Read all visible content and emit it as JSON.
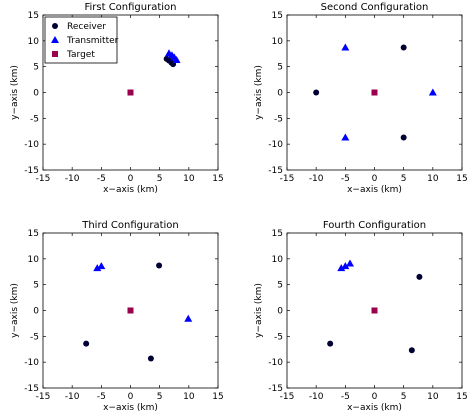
{
  "colors": {
    "receiver": "#000033",
    "transmitter": "#0000ff",
    "target": "#99004d"
  },
  "legend": {
    "placement": "top-left",
    "entries": [
      {
        "label": "Receiver",
        "marker": "circle"
      },
      {
        "label": "Transmitter",
        "marker": "triangle"
      },
      {
        "label": "Target",
        "marker": "square"
      }
    ]
  },
  "chart_data": [
    {
      "type": "scatter",
      "title": "First Configuration",
      "xlabel": "x−axis (km)",
      "ylabel": "y−axis (km)",
      "xlim": [
        -15,
        15
      ],
      "ylim": [
        -15,
        15
      ],
      "xticks": [
        -15,
        -10,
        -5,
        0,
        5,
        10,
        15
      ],
      "yticks": [
        -15,
        -10,
        -5,
        0,
        5,
        10,
        15
      ],
      "series": [
        {
          "name": "Receiver",
          "marker": "circle",
          "points": [
            [
              6.2,
              6.5
            ],
            [
              6.6,
              6.2
            ],
            [
              7.0,
              5.8
            ],
            [
              7.3,
              5.5
            ]
          ]
        },
        {
          "name": "Transmitter",
          "marker": "triangle",
          "points": [
            [
              6.6,
              7.6
            ],
            [
              7.1,
              7.2
            ],
            [
              7.5,
              6.8
            ],
            [
              7.9,
              6.3
            ]
          ]
        },
        {
          "name": "Target",
          "marker": "square",
          "points": [
            [
              0,
              0
            ]
          ]
        }
      ]
    },
    {
      "type": "scatter",
      "title": "Second Configuration",
      "xlabel": "x−axis (km)",
      "ylabel": "y−axis (km)",
      "xlim": [
        -15,
        15
      ],
      "ylim": [
        -15,
        15
      ],
      "xticks": [
        -15,
        -10,
        -5,
        0,
        5,
        10,
        15
      ],
      "yticks": [
        -15,
        -10,
        -5,
        0,
        5,
        10,
        15
      ],
      "series": [
        {
          "name": "Receiver",
          "marker": "circle",
          "points": [
            [
              -10,
              0
            ],
            [
              5,
              8.7
            ],
            [
              5,
              -8.7
            ]
          ]
        },
        {
          "name": "Transmitter",
          "marker": "triangle",
          "points": [
            [
              10,
              0
            ],
            [
              -5,
              8.7
            ],
            [
              -5,
              -8.7
            ]
          ]
        },
        {
          "name": "Target",
          "marker": "square",
          "points": [
            [
              0,
              0
            ]
          ]
        }
      ]
    },
    {
      "type": "scatter",
      "title": "Third Configuration",
      "xlabel": "x−axis (km)",
      "ylabel": "y−axis (km)",
      "xlim": [
        -15,
        15
      ],
      "ylim": [
        -15,
        15
      ],
      "xticks": [
        -15,
        -10,
        -5,
        0,
        5,
        10,
        15
      ],
      "yticks": [
        -15,
        -10,
        -5,
        0,
        5,
        10,
        15
      ],
      "series": [
        {
          "name": "Receiver",
          "marker": "circle",
          "points": [
            [
              4.9,
              8.7
            ],
            [
              -7.6,
              -6.4
            ],
            [
              3.5,
              -9.3
            ]
          ]
        },
        {
          "name": "Transmitter",
          "marker": "triangle",
          "points": [
            [
              -5.7,
              8.2
            ],
            [
              -5.0,
              8.6
            ],
            [
              9.9,
              -1.6
            ]
          ]
        },
        {
          "name": "Target",
          "marker": "square",
          "points": [
            [
              0,
              0
            ]
          ]
        }
      ]
    },
    {
      "type": "scatter",
      "title": "Fourth Configuration",
      "xlabel": "x−axis (km)",
      "ylabel": "y−axis (km)",
      "xlim": [
        -15,
        15
      ],
      "ylim": [
        -15,
        15
      ],
      "xticks": [
        -15,
        -10,
        -5,
        0,
        5,
        10,
        15
      ],
      "yticks": [
        -15,
        -10,
        -5,
        0,
        5,
        10,
        15
      ],
      "series": [
        {
          "name": "Receiver",
          "marker": "circle",
          "points": [
            [
              7.7,
              6.5
            ],
            [
              -7.6,
              -6.4
            ],
            [
              6.4,
              -7.7
            ]
          ]
        },
        {
          "name": "Transmitter",
          "marker": "triangle",
          "points": [
            [
              -5.7,
              8.2
            ],
            [
              -5.0,
              8.6
            ],
            [
              -4.2,
              9.1
            ]
          ]
        },
        {
          "name": "Target",
          "marker": "square",
          "points": [
            [
              0,
              0
            ]
          ]
        }
      ]
    }
  ]
}
